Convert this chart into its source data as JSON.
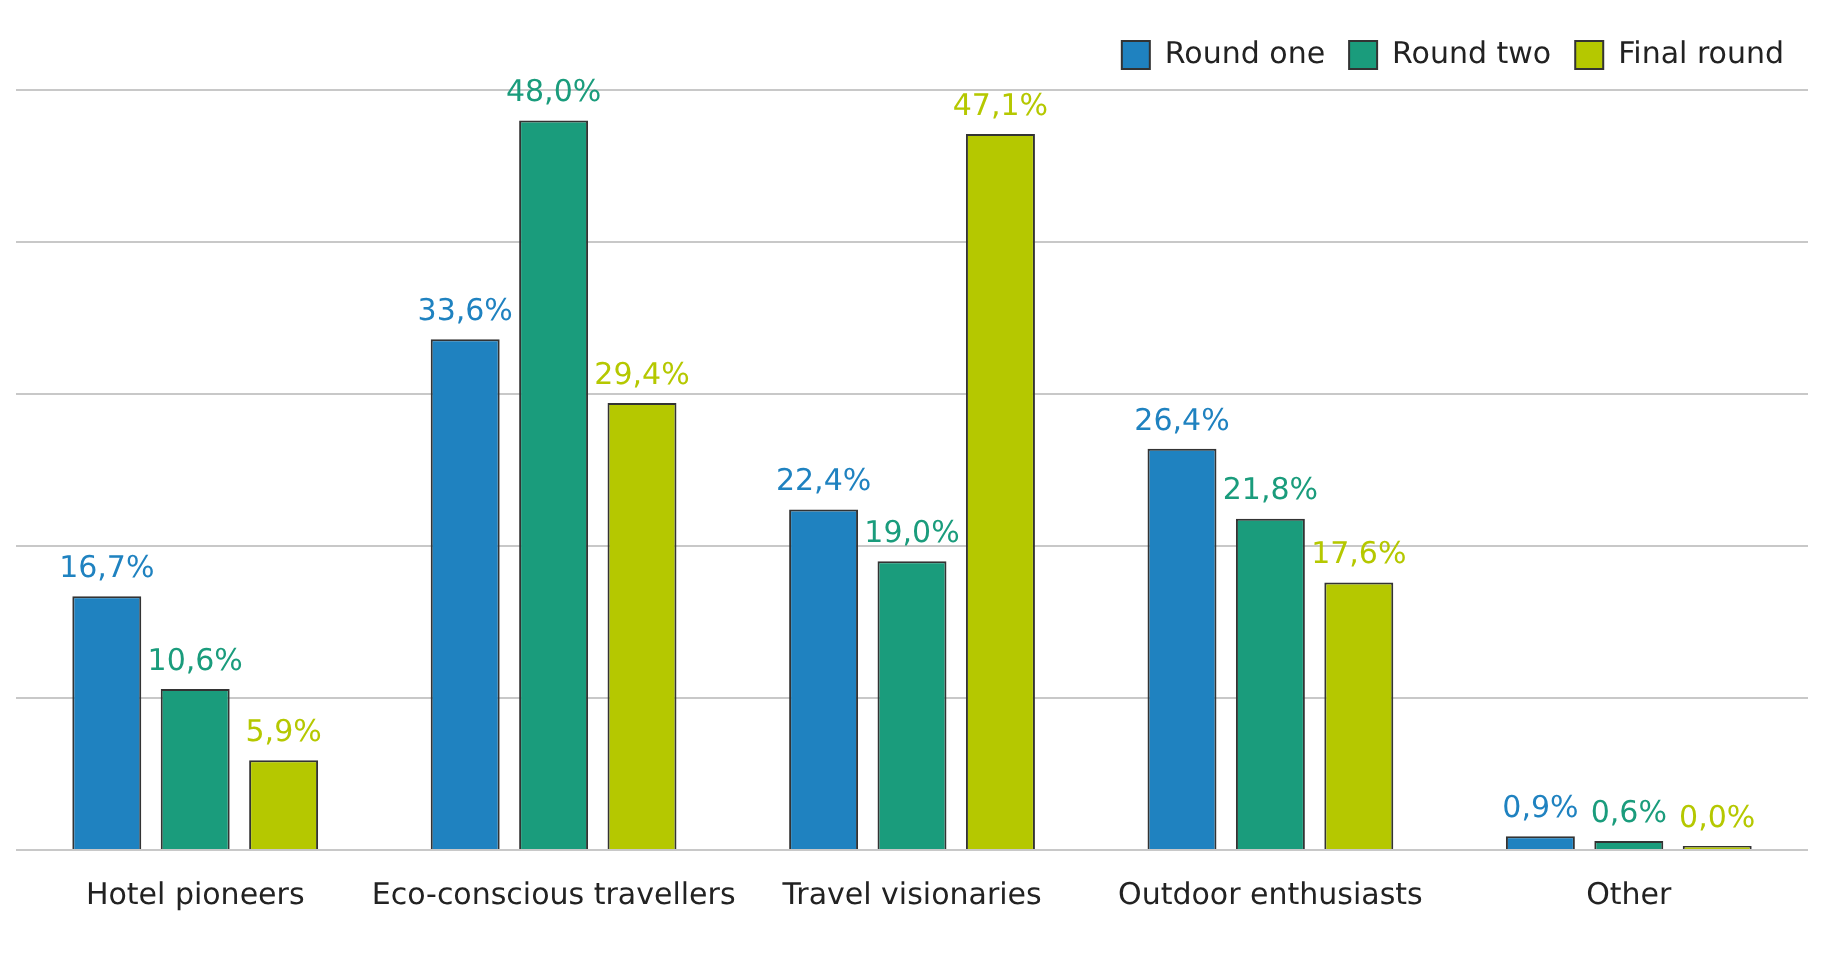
{
  "chart_data": {
    "type": "bar",
    "categories": [
      "Hotel pioneers",
      "Eco-conscious travellers",
      "Travel visionaries",
      "Outdoor enthusiasts",
      "Other"
    ],
    "series": [
      {
        "name": "Round one",
        "color": "#1f82c0",
        "values": [
          16.7,
          33.6,
          22.4,
          26.4,
          0.9
        ],
        "value_labels": [
          "16,7%",
          "33,6%",
          "22,4%",
          "26,4%",
          "0,9%"
        ]
      },
      {
        "name": "Round two",
        "color": "#1a9c7c",
        "values": [
          10.6,
          48.0,
          19.0,
          21.8,
          0.6
        ],
        "value_labels": [
          "10,6%",
          "48,0%",
          "19,0%",
          "21,8%",
          "0,6%"
        ]
      },
      {
        "name": "Final round",
        "color": "#b5c800",
        "values": [
          5.9,
          29.4,
          47.1,
          17.6,
          0.0
        ],
        "value_labels": [
          "5,9%",
          "29,4%",
          "47,1%",
          "17,6%",
          "0,0%"
        ]
      }
    ],
    "ylim": [
      0,
      50
    ],
    "yticks": [
      {
        "value": 0,
        "label": null
      },
      {
        "value": 10,
        "label": null
      },
      {
        "value": 20,
        "label": null
      },
      {
        "value": 30,
        "label": null
      },
      {
        "value": 40,
        "label": null
      },
      {
        "value": 50,
        "label": null
      }
    ],
    "tick_labels": "x",
    "grid": "y",
    "legend": "top right"
  }
}
